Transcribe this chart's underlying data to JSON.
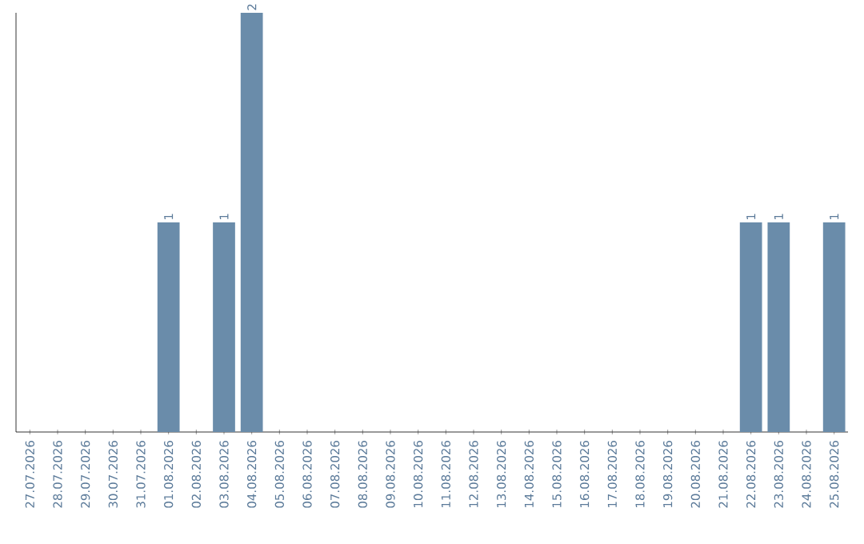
{
  "chart_data": {
    "type": "bar",
    "categories": [
      "27.07.2026",
      "28.07.2026",
      "29.07.2026",
      "30.07.2026",
      "31.07.2026",
      "01.08.2026",
      "02.08.2026",
      "03.08.2026",
      "04.08.2026",
      "05.08.2026",
      "06.08.2026",
      "07.08.2026",
      "08.08.2026",
      "09.08.2026",
      "10.08.2026",
      "11.08.2026",
      "12.08.2026",
      "13.08.2026",
      "14.08.2026",
      "15.08.2026",
      "16.08.2026",
      "17.08.2026",
      "18.08.2026",
      "19.08.2026",
      "20.08.2026",
      "21.08.2026",
      "22.08.2026",
      "23.08.2026",
      "24.08.2026",
      "25.08.2026"
    ],
    "values": [
      0,
      0,
      0,
      0,
      0,
      1,
      0,
      1,
      2,
      0,
      0,
      0,
      0,
      0,
      0,
      0,
      0,
      0,
      0,
      0,
      0,
      0,
      0,
      0,
      0,
      0,
      1,
      1,
      0,
      1
    ],
    "value_labels": [
      null,
      null,
      null,
      null,
      null,
      "1",
      null,
      "1",
      "2",
      null,
      null,
      null,
      null,
      null,
      null,
      null,
      null,
      null,
      null,
      null,
      null,
      null,
      null,
      null,
      null,
      null,
      "1",
      "1",
      null,
      "1"
    ],
    "color": "#6a8caa"
  }
}
